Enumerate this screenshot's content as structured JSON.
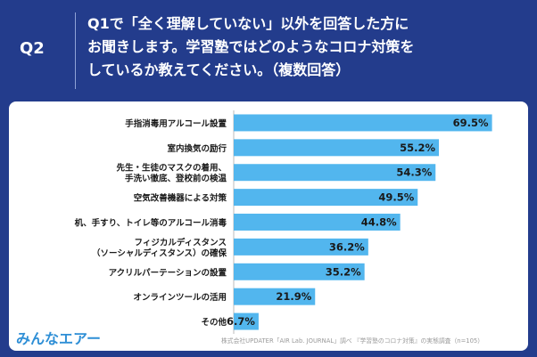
{
  "header": {
    "question_number": "Q2",
    "question_lines": [
      "Q1で「全く理解していない」以外を回答した方に",
      "お聞きします。学習塾ではどのようなコロナ対策を",
      "しているか教えてください。（複数回答）"
    ]
  },
  "chart_data": {
    "type": "bar",
    "orientation": "horizontal",
    "categories": [
      [
        "手指消毒用アルコール設置"
      ],
      [
        "室内換気の励行"
      ],
      [
        "先生・生徒のマスクの着用、",
        "手洗い徹底、登校前の検温"
      ],
      [
        "空気改善機器による対策"
      ],
      [
        "机、手すり、トイレ等のアルコール消毒"
      ],
      [
        "フィジカルディスタンス",
        "（ソーシャルディスタンス）の確保"
      ],
      [
        "アクリルパーテーションの設置"
      ],
      [
        "オンラインツールの活用"
      ],
      [
        "その他"
      ]
    ],
    "values": [
      69.5,
      55.2,
      54.3,
      49.5,
      44.8,
      36.2,
      35.2,
      21.9,
      6.7
    ],
    "value_labels": [
      "69.5%",
      "55.2%",
      "54.3%",
      "49.5%",
      "44.8%",
      "36.2%",
      "35.2%",
      "21.9%",
      "6.7%"
    ],
    "xlim": [
      0,
      72
    ],
    "bar_color": "#52b6ee",
    "label_color": "#1a1a1a"
  },
  "footer": {
    "logo_text": "みんなエアー",
    "source": "株式会社UPDATER「AIR Lab. JOURNAL」調べ 『学習塾のコロナ対策』の実態調査（n=105）"
  }
}
